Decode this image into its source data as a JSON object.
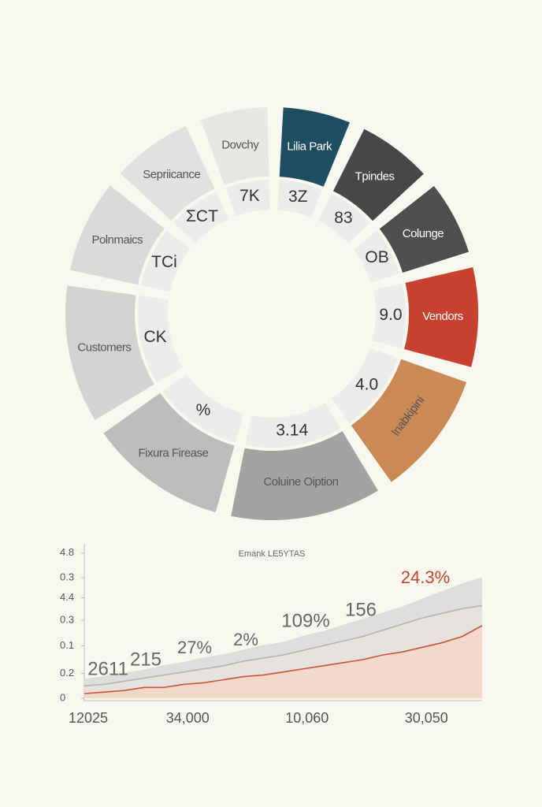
{
  "chart_data": [
    {
      "type": "pie",
      "categories": [
        "Lilia Park",
        "Tpindes",
        "Colunge",
        "Vendors",
        "Inabkipini",
        "Coluine Oiption",
        "Fixura Firease",
        "Customers",
        "Polnmaics",
        "Sepriicance",
        "Dovchy"
      ],
      "values": [
        6.5,
        7,
        7,
        9,
        11,
        13,
        12,
        12,
        8.5,
        7.5,
        6.5
      ],
      "colors": [
        "#1f4e63",
        "#474747",
        "#4f4f4f",
        "#c8412f",
        "#c98a55",
        "#a3a3a2",
        "#bdbdbc",
        "#d3d3d1",
        "#dadad8",
        "#e1e1df",
        "#e7e7e4"
      ],
      "inner_labels": [
        "3Z",
        "83",
        "OB",
        "9.0",
        "4.0",
        "3.14",
        "%",
        "CK",
        "TCi",
        "ΣCT",
        "7K"
      ]
    },
    {
      "type": "area",
      "title": "Emank LE5YTAS",
      "categories": [
        "12025",
        null,
        null,
        null,
        null,
        "34,000",
        null,
        null,
        null,
        null,
        null,
        "10,060",
        null,
        null,
        null,
        null,
        null,
        "30,050",
        null,
        null,
        null
      ],
      "ylim": [
        0,
        100
      ],
      "yticks": [
        {
          "value": 94,
          "label": "4.8"
        },
        {
          "value": 78,
          "label": "0.3"
        },
        {
          "value": 65,
          "label": "4.4"
        },
        {
          "value": 50.5,
          "label": "0.3"
        },
        {
          "value": 34,
          "label": "0.1"
        },
        {
          "value": 16,
          "label": "0.2"
        },
        0
      ],
      "series": [
        {
          "color": "#dcdcda",
          "values": [
            12,
            14,
            16,
            18,
            21,
            23,
            26,
            28,
            31,
            34,
            36,
            40,
            43,
            47,
            51,
            55,
            59,
            64,
            69,
            74,
            78
          ]
        },
        {
          "color": "#b3b3b1",
          "values": [
            8,
            9,
            11,
            13,
            15,
            17,
            19,
            21,
            24,
            26,
            28,
            31,
            34,
            37,
            40,
            44,
            48,
            52,
            55,
            58,
            60
          ]
        },
        {
          "color": "#c9533a",
          "values": [
            3,
            4,
            5,
            7,
            7,
            9,
            10,
            12,
            14,
            15,
            17,
            19,
            21,
            23,
            25,
            28,
            30,
            33,
            36,
            40,
            47
          ]
        }
      ],
      "annotations": [
        {
          "text": "2611",
          "color": "#666666"
        },
        {
          "text": "215",
          "color": "#666666"
        },
        {
          "text": "27%",
          "color": "#666666"
        },
        {
          "text": "2%",
          "color": "#666666"
        },
        {
          "text": "109%",
          "color": "#666666"
        },
        {
          "text": "156",
          "color": "#666666"
        },
        {
          "text": "24.3%",
          "color": "#c0452f"
        }
      ]
    }
  ]
}
